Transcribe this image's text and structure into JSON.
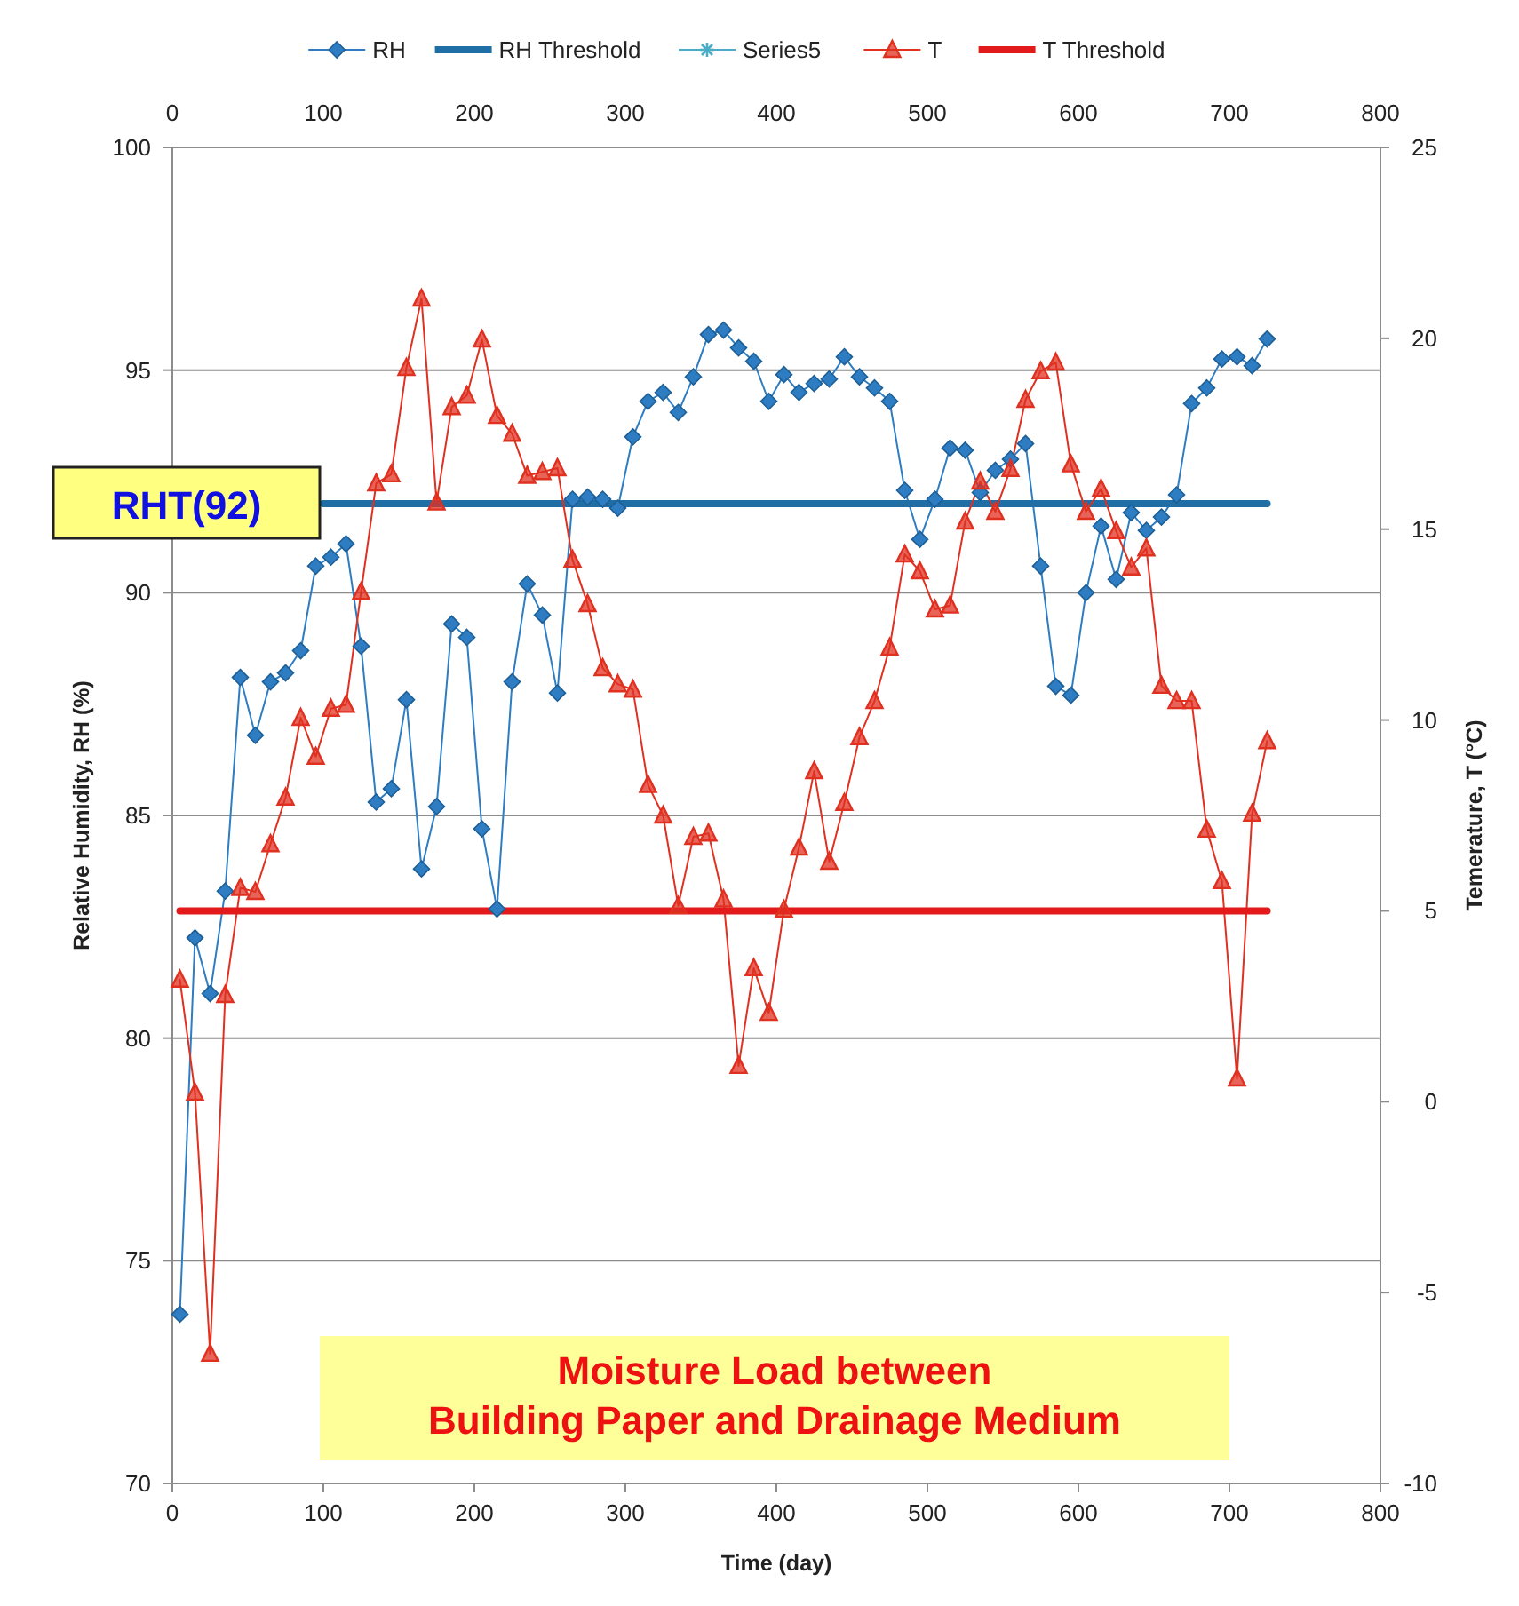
{
  "chart_data": {
    "type": "line",
    "xlabel": "Time (day)",
    "ylabel": "Relative Humidity, RH (%)",
    "y2label": "Temerature, T (°C)",
    "xlim": [
      0,
      800
    ],
    "xticks": [
      0,
      100,
      200,
      300,
      400,
      500,
      600,
      700,
      800
    ],
    "x2lim": [
      0,
      800
    ],
    "x2ticks": [
      0,
      100,
      200,
      300,
      400,
      500,
      600,
      700,
      800
    ],
    "ylim": [
      70,
      100
    ],
    "yticks": [
      70,
      75,
      80,
      85,
      90,
      95,
      100
    ],
    "y2lim": [
      -10,
      25
    ],
    "y2ticks": [
      -10,
      -5,
      0,
      5,
      10,
      15,
      20,
      25
    ],
    "grid": "y",
    "legend": "top",
    "x": [
      5,
      15,
      25,
      35,
      45,
      55,
      65,
      75,
      85,
      95,
      105,
      115,
      125,
      135,
      145,
      155,
      165,
      175,
      185,
      195,
      205,
      215,
      225,
      235,
      245,
      255,
      265,
      275,
      285,
      295,
      305,
      315,
      325,
      335,
      345,
      355,
      365,
      375,
      385,
      395,
      405,
      415,
      425,
      435,
      445,
      455,
      465,
      475,
      485,
      495,
      505,
      515,
      525,
      535,
      545,
      555,
      565,
      575,
      585,
      595,
      605,
      615,
      625,
      635,
      645,
      655,
      665,
      675,
      685,
      695,
      705,
      715,
      725
    ],
    "series": [
      {
        "name": "RH",
        "color": "#2e7dc2",
        "marker": "diamond",
        "line_style": "solid",
        "values": [
          73.8,
          82.25,
          81.0,
          83.3,
          88.1,
          86.8,
          88.0,
          88.2,
          88.7,
          90.6,
          90.8,
          91.1,
          88.8,
          85.3,
          85.6,
          87.6,
          83.8,
          85.2,
          89.3,
          89.0,
          84.7,
          82.9,
          88.0,
          90.2,
          89.5,
          87.75,
          92.1,
          92.15,
          92.1,
          91.9,
          93.5,
          94.3,
          94.5,
          94.05,
          94.85,
          95.8,
          95.9,
          95.5,
          95.2,
          94.3,
          94.9,
          94.5,
          94.7,
          94.8,
          95.3,
          94.85,
          94.6,
          94.3,
          92.3,
          91.2,
          92.1,
          93.25,
          93.2,
          92.25,
          92.75,
          93.0,
          93.35,
          90.6,
          87.9,
          87.7,
          90.0,
          91.5,
          90.3,
          91.8,
          91.4,
          91.7,
          92.2,
          94.25,
          94.6,
          95.25,
          95.3,
          95.1,
          95.7
        ]
      },
      {
        "name": "RH Threshold",
        "color": "#1f6ea6",
        "marker": "none",
        "line_style": "solid",
        "x": [
          100,
          725
        ],
        "values": [
          92,
          92
        ]
      },
      {
        "name": "Series5",
        "color": "#4bacc6",
        "marker": "star",
        "line_style": "solid",
        "values": [
          null,
          null,
          null,
          null,
          null,
          null,
          null,
          null,
          null,
          null,
          null,
          null,
          null,
          null,
          null,
          null,
          null,
          null,
          null,
          null,
          null,
          null,
          null,
          null,
          null,
          null,
          null,
          null,
          null,
          null,
          null,
          null,
          null,
          null,
          null,
          null,
          null,
          null,
          null,
          null,
          null,
          null,
          null,
          null,
          null,
          null,
          null,
          null,
          null,
          null,
          null,
          null,
          null,
          null,
          null,
          null,
          null,
          null,
          null,
          null,
          null,
          null,
          null,
          null,
          null,
          null,
          null,
          null,
          null,
          null,
          null,
          null,
          null
        ]
      },
      {
        "name": "T",
        "color": "#e03020",
        "marker": "triangle",
        "line_style": "solid",
        "axis": "y2",
        "values": [
          3.2,
          0.24,
          -6.6,
          2.8,
          5.6,
          5.5,
          6.75,
          7.97,
          10.06,
          9.04,
          10.3,
          10.4,
          13.36,
          16.2,
          16.44,
          19.23,
          21.04,
          15.7,
          18.2,
          18.5,
          19.97,
          17.97,
          17.5,
          16.4,
          16.5,
          16.6,
          14.2,
          13.04,
          11.36,
          10.94,
          10.8,
          8.3,
          7.5,
          5.13,
          6.94,
          7.03,
          5.3,
          0.94,
          3.5,
          2.33,
          5.03,
          6.66,
          8.66,
          6.29,
          7.83,
          9.55,
          10.5,
          11.9,
          14.34,
          13.9,
          12.9,
          13.0,
          15.2,
          16.25,
          15.46,
          16.58,
          18.39,
          19.14,
          19.37,
          16.7,
          15.46,
          16.06,
          14.95,
          14.0,
          14.5,
          10.9,
          10.5,
          10.5,
          7.13,
          5.78,
          0.61,
          7.55,
          9.45
        ]
      },
      {
        "name": "T Threshold",
        "color": "#e31a1c",
        "marker": "none",
        "line_style": "solid",
        "axis": "y2",
        "x": [
          5,
          725
        ],
        "values": [
          5,
          5
        ]
      }
    ],
    "annotations": [
      "RHT(92)",
      "Moisture Load between\nBuilding Paper and Drainage Medium"
    ]
  }
}
